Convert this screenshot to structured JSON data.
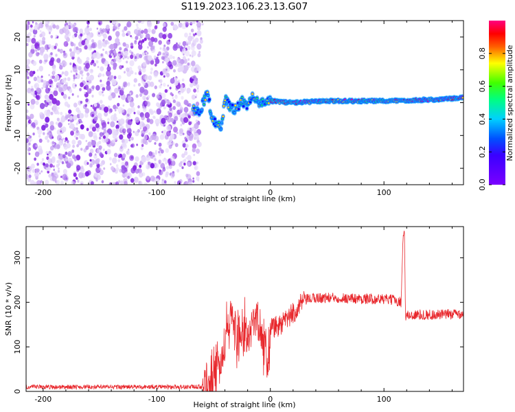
{
  "title": "S119.2023.106.23.13.G07",
  "colors": {
    "snr_line": "#e8262b",
    "background_dot": "#8a2be2",
    "tick_color": "#000000"
  },
  "chart_data": [
    {
      "type": "heatmap",
      "xlabel": "Height of straight line (km)",
      "ylabel": "Frequency (Hz)",
      "xlim": [
        -215,
        170
      ],
      "ylim": [
        -25,
        25
      ],
      "x_ticks": [
        -200,
        -100,
        0,
        100
      ],
      "y_ticks": [
        -20,
        -10,
        0,
        10,
        20
      ],
      "colorbar": {
        "label": "Normalized spectral amplitude",
        "range": [
          0.0,
          1.0
        ],
        "ticks": [
          "0.0",
          "0.2",
          "0.4",
          "0.6",
          "0.8"
        ],
        "colormap": "rainbow (violet → blue → cyan → green → yellow → red → magenta)"
      },
      "ridge": [
        {
          "x": -68,
          "y": -2.2
        },
        {
          "x": -62,
          "y": -2.5
        },
        {
          "x": -55,
          "y": 3.5
        },
        {
          "x": -52,
          "y": -4.5
        },
        {
          "x": -48,
          "y": -6.5
        },
        {
          "x": -43,
          "y": -7.5
        },
        {
          "x": -40,
          "y": 1.5
        },
        {
          "x": -35,
          "y": -1.5
        },
        {
          "x": -30,
          "y": -2.0
        },
        {
          "x": -25,
          "y": 0.5
        },
        {
          "x": -20,
          "y": -1.5
        },
        {
          "x": -15,
          "y": 2.5
        },
        {
          "x": -10,
          "y": 0.0
        },
        {
          "x": 0,
          "y": 0.5
        },
        {
          "x": 20,
          "y": 0.0
        },
        {
          "x": 50,
          "y": 0.5
        },
        {
          "x": 100,
          "y": 0.5
        },
        {
          "x": 150,
          "y": 1.0
        },
        {
          "x": 170,
          "y": 1.5
        }
      ],
      "noise_region_x": [
        -215,
        -62
      ]
    },
    {
      "type": "line",
      "xlabel": "Height of straight line (km)",
      "ylabel": "SNR (10 * v/v)",
      "xlim": [
        -215,
        170
      ],
      "ylim": [
        0,
        370
      ],
      "x_ticks": [
        -200,
        -100,
        0,
        100
      ],
      "y_ticks": [
        0,
        100,
        200,
        300
      ],
      "series": [
        {
          "x": [
            -215,
            -150,
            -100,
            -60,
            -50,
            -45,
            -40,
            -36,
            -33,
            -30,
            -25,
            -20,
            -15,
            -10,
            -5,
            -2,
            0,
            5,
            10,
            20,
            30,
            40,
            60,
            80,
            100,
            110,
            115,
            117,
            118,
            119,
            130,
            150,
            170
          ],
          "y": [
            10,
            10,
            10,
            10,
            35,
            60,
            95,
            150,
            190,
            120,
            140,
            115,
            170,
            150,
            95,
            80,
            140,
            145,
            150,
            175,
            205,
            210,
            210,
            208,
            207,
            205,
            200,
            360,
            350,
            170,
            172,
            172,
            175
          ]
        }
      ]
    }
  ]
}
